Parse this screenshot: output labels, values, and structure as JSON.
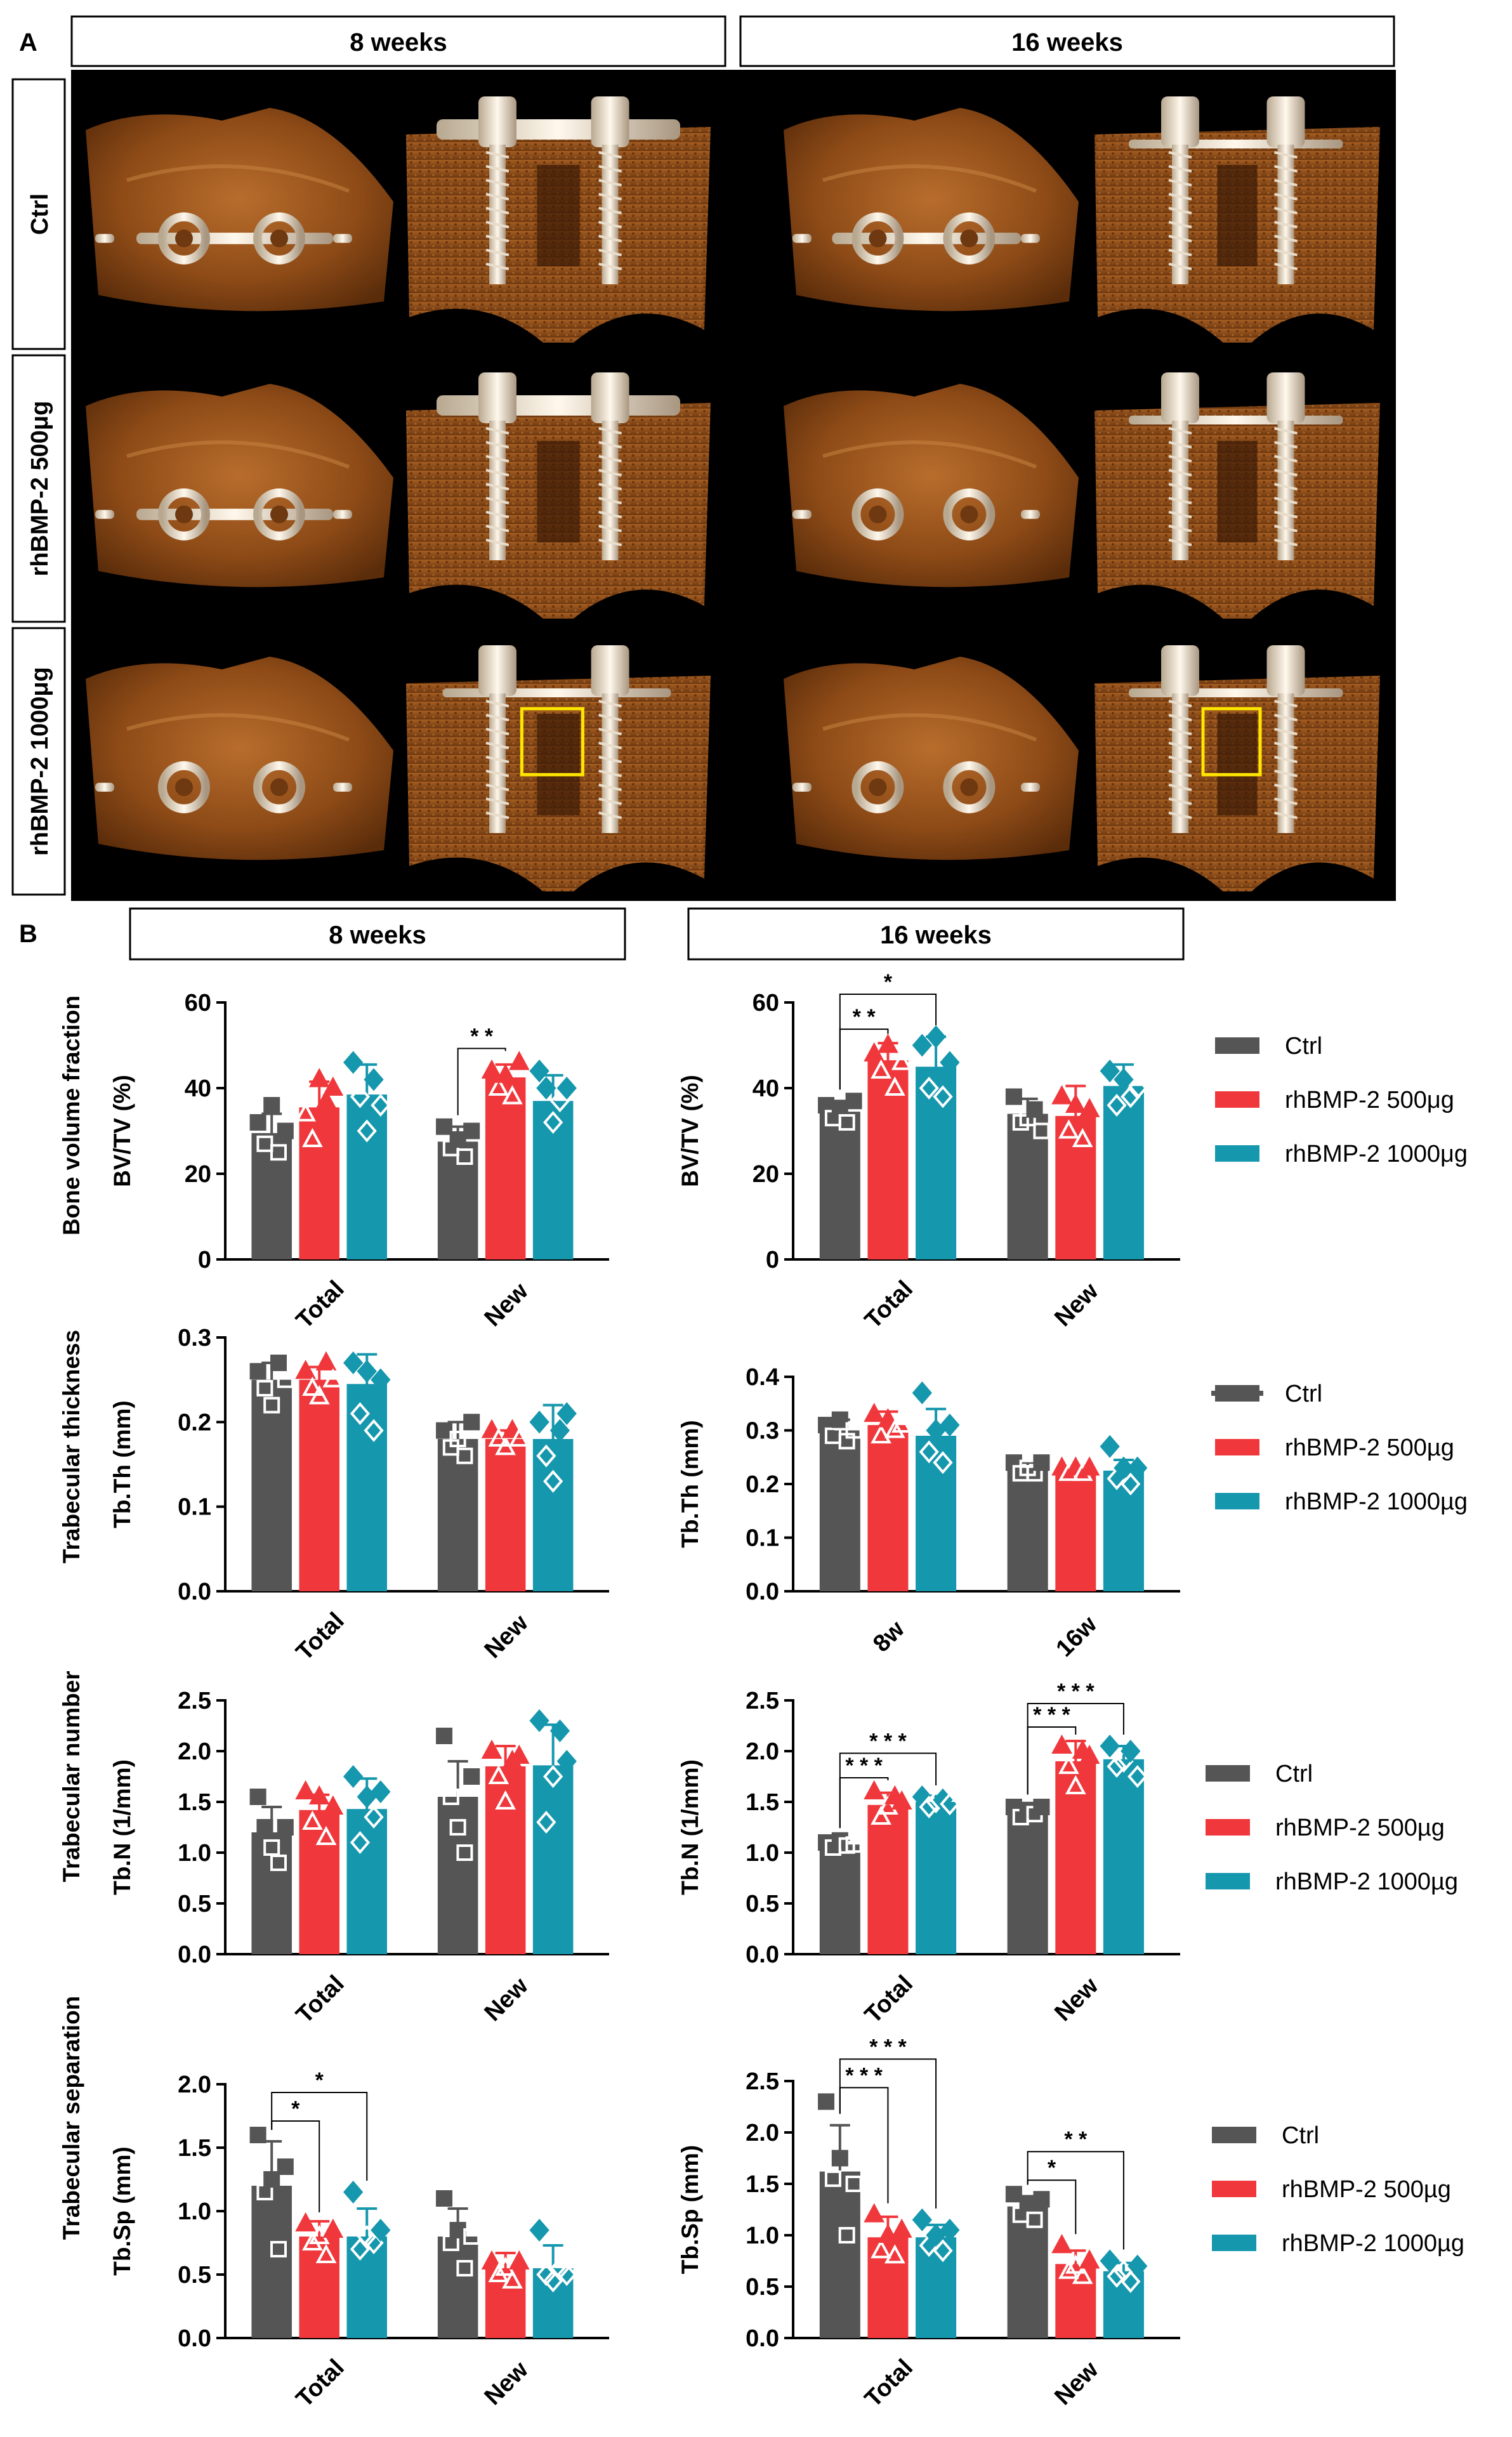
{
  "panel_a": {
    "label": "A",
    "col_headers": [
      "8 weeks",
      "16 weeks"
    ],
    "row_labels": [
      "Ctrl",
      "rhBMP-2 500μg",
      "rhBMP-2 1000μg"
    ]
  },
  "panel_b": {
    "label": "B",
    "col_headers": [
      "8 weeks",
      "16 weeks"
    ],
    "row_titles": [
      "Bone volume fraction",
      "Trabecular thickness",
      "Trabecular number",
      "Trabecular separation"
    ]
  },
  "colors": {
    "ctrl": "#555555",
    "bmp500": "#f0383c",
    "bmp1000": "#1597ad"
  },
  "chart_data": [
    {
      "type": "bar",
      "id": "bv8",
      "ylabel": "BV/TV (%)",
      "ylim": [
        0,
        60
      ],
      "yticks": [
        "0",
        "20",
        "40",
        "60"
      ],
      "categories": [
        "Total",
        "New"
      ],
      "series": [
        {
          "name": "Ctrl",
          "values": [
            29.5,
            27.5
          ],
          "err": [
            4.5,
            3.5
          ],
          "points": [
            [
              32,
              27,
              36,
              25,
              30
            ],
            [
              31,
              26,
              28,
              24,
              30
            ]
          ]
        },
        {
          "name": "rhBMP-2 500μg",
          "values": [
            35.5,
            42.5
          ],
          "err": [
            6,
            3
          ],
          "points": [
            [
              34,
              28,
              42,
              37,
              40
            ],
            [
              44,
              40,
              43,
              38,
              46
            ]
          ]
        },
        {
          "name": "rhBMP-2 1000μg",
          "values": [
            38.5,
            37
          ],
          "err": [
            7,
            6
          ],
          "points": [
            [
              46,
              38,
              30,
              42,
              36
            ],
            [
              44,
              40,
              32,
              37,
              40
            ]
          ]
        }
      ],
      "sig": [
        {
          "text": "* *",
          "from": [
            1,
            0
          ],
          "to": [
            1,
            1
          ]
        }
      ]
    },
    {
      "type": "bar",
      "id": "bv16",
      "ylabel": "BV/TV (%)",
      "ylim": [
        0,
        60
      ],
      "yticks": [
        "0",
        "20",
        "40",
        "60"
      ],
      "categories": [
        "Total",
        "New"
      ],
      "series": [
        {
          "name": "Ctrl",
          "values": [
            34.5,
            34
          ],
          "err": [
            2.5,
            3.5
          ],
          "points": [
            [
              36,
              33,
              35,
              32,
              37
            ],
            [
              38,
              32,
              33,
              35,
              30
            ]
          ]
        },
        {
          "name": "rhBMP-2 500μg",
          "values": [
            46.5,
            33.5
          ],
          "err": [
            4,
            7
          ],
          "points": [
            [
              48,
              44,
              50,
              40,
              46
            ],
            [
              38,
              30,
              36,
              28,
              35
            ]
          ]
        },
        {
          "name": "rhBMP-2 1000μg",
          "values": [
            45,
            40.5
          ],
          "err": [
            7,
            5
          ],
          "points": [
            [
              50,
              40,
              52,
              38,
              46
            ],
            [
              44,
              36,
              42,
              38,
              40
            ]
          ]
        }
      ],
      "sig": [
        {
          "text": "* *",
          "from": [
            0,
            0
          ],
          "to": [
            0,
            1
          ]
        },
        {
          "text": "*",
          "from": [
            0,
            0
          ],
          "to": [
            0,
            2
          ]
        }
      ]
    },
    {
      "type": "bar",
      "id": "th8",
      "ylabel": "Tb.Th (mm)",
      "ylim": [
        0,
        0.3
      ],
      "yticks": [
        "0.0",
        "0.1",
        "0.2",
        "0.3"
      ],
      "categories": [
        "Total",
        "New"
      ],
      "series": [
        {
          "name": "Ctrl",
          "values": [
            0.25,
            0.18
          ],
          "err": [
            0.02,
            0.02
          ],
          "points": [
            [
              0.26,
              0.24,
              0.22,
              0.27,
              0.25
            ],
            [
              0.19,
              0.17,
              0.18,
              0.16,
              0.2
            ]
          ]
        },
        {
          "name": "rhBMP-2 500μg",
          "values": [
            0.25,
            0.18
          ],
          "err": [
            0.015,
            0.01
          ],
          "points": [
            [
              0.26,
              0.24,
              0.23,
              0.27,
              0.25
            ],
            [
              0.19,
              0.18,
              0.17,
              0.19,
              0.18
            ]
          ]
        },
        {
          "name": "rhBMP-2 1000μg",
          "values": [
            0.245,
            0.18
          ],
          "err": [
            0.035,
            0.04
          ],
          "points": [
            [
              0.27,
              0.21,
              0.26,
              0.19,
              0.25
            ],
            [
              0.2,
              0.16,
              0.13,
              0.19,
              0.21
            ]
          ]
        }
      ],
      "sig": []
    },
    {
      "type": "bar",
      "id": "th16",
      "ylabel": "Tb.Th (mm)",
      "ylim": [
        0,
        0.4
      ],
      "yticks": [
        "0.0",
        "0.1",
        "0.2",
        "0.3",
        "0.4"
      ],
      "categories": [
        "8w",
        "16w"
      ],
      "series": [
        {
          "name": "Ctrl",
          "values": [
            0.3,
            0.23
          ],
          "err": [
            0.02,
            0.01
          ],
          "points": [
            [
              0.31,
              0.29,
              0.32,
              0.28,
              0.3
            ],
            [
              0.24,
              0.22,
              0.23,
              0.22,
              0.24
            ]
          ]
        },
        {
          "name": "rhBMP-2 500μg",
          "values": [
            0.31,
            0.225
          ],
          "err": [
            0.025,
            0.008
          ],
          "points": [
            [
              0.33,
              0.29,
              0.32,
              0.3,
              0.31
            ],
            [
              0.23,
              0.22,
              0.23,
              0.22,
              0.23
            ]
          ]
        },
        {
          "name": "rhBMP-2 1000μg",
          "values": [
            0.29,
            0.225
          ],
          "err": [
            0.05,
            0.02
          ],
          "points": [
            [
              0.37,
              0.26,
              0.3,
              0.24,
              0.31
            ],
            [
              0.27,
              0.21,
              0.23,
              0.2,
              0.23
            ]
          ]
        }
      ],
      "sig": []
    },
    {
      "type": "bar",
      "id": "n8",
      "ylabel": "Tb.N (1/mm)",
      "ylim": [
        0,
        2.5
      ],
      "yticks": [
        "0.0",
        "0.5",
        "1.0",
        "1.5",
        "2.0",
        "2.5"
      ],
      "categories": [
        "Total",
        "New"
      ],
      "series": [
        {
          "name": "Ctrl",
          "values": [
            1.2,
            1.55
          ],
          "err": [
            0.25,
            0.35
          ],
          "points": [
            [
              1.55,
              1.25,
              1.05,
              0.9,
              1.25
            ],
            [
              2.15,
              1.55,
              1.25,
              1.0,
              1.75
            ]
          ]
        },
        {
          "name": "rhBMP-2 500μg",
          "values": [
            1.42,
            1.85
          ],
          "err": [
            0.15,
            0.2
          ],
          "points": [
            [
              1.6,
              1.3,
              1.55,
              1.15,
              1.45
            ],
            [
              2.0,
              1.75,
              1.5,
              1.9,
              1.95
            ]
          ]
        },
        {
          "name": "rhBMP-2 1000μg",
          "values": [
            1.43,
            1.86
          ],
          "err": [
            0.3,
            0.4
          ],
          "points": [
            [
              1.75,
              1.1,
              1.55,
              1.35,
              1.6
            ],
            [
              2.3,
              1.3,
              1.75,
              2.2,
              1.9
            ]
          ]
        }
      ],
      "sig": []
    },
    {
      "type": "bar",
      "id": "n16",
      "ylabel": "Tb.N (1/mm)",
      "ylim": [
        0,
        2.5
      ],
      "yticks": [
        "0.0",
        "0.5",
        "1.0",
        "1.5",
        "2.0",
        "2.5"
      ],
      "categories": [
        "Total",
        "New"
      ],
      "series": [
        {
          "name": "Ctrl",
          "values": [
            1.08,
            1.4
          ],
          "err": [
            0.05,
            0.06
          ],
          "points": [
            [
              1.1,
              1.05,
              1.12,
              1.07,
              1.08
            ],
            [
              1.45,
              1.35,
              1.42,
              1.38,
              1.45
            ]
          ]
        },
        {
          "name": "rhBMP-2 500μg",
          "values": [
            1.47,
            1.9
          ],
          "err": [
            0.12,
            0.2
          ],
          "points": [
            [
              1.6,
              1.35,
              1.45,
              1.55,
              1.5
            ],
            [
              2.05,
              1.85,
              1.65,
              2.0,
              1.95
            ]
          ]
        },
        {
          "name": "rhBMP-2 1000μg",
          "values": [
            1.5,
            1.92
          ],
          "err": [
            0.06,
            0.13
          ],
          "points": [
            [
              1.55,
              1.45,
              1.5,
              1.52,
              1.48
            ],
            [
              2.05,
              1.85,
              1.9,
              2.0,
              1.75
            ]
          ]
        }
      ],
      "sig": [
        {
          "text": "* * *",
          "from": [
            0,
            0
          ],
          "to": [
            0,
            1
          ]
        },
        {
          "text": "* * *",
          "from": [
            0,
            0
          ],
          "to": [
            0,
            2
          ]
        },
        {
          "text": "* * *",
          "from": [
            1,
            0
          ],
          "to": [
            1,
            1
          ]
        },
        {
          "text": "* * *",
          "from": [
            1,
            0
          ],
          "to": [
            1,
            2
          ]
        }
      ]
    },
    {
      "type": "bar",
      "id": "sp8",
      "ylabel": "Tb.Sp (mm)",
      "ylim": [
        0,
        2.0
      ],
      "yticks": [
        "0.0",
        "0.5",
        "1.0",
        "1.5",
        "2.0"
      ],
      "categories": [
        "Total",
        "New"
      ],
      "series": [
        {
          "name": "Ctrl",
          "values": [
            1.2,
            0.8
          ],
          "err": [
            0.35,
            0.22
          ],
          "points": [
            [
              1.6,
              1.15,
              1.25,
              0.7,
              1.35
            ],
            [
              1.1,
              0.75,
              0.85,
              0.55,
              0.8
            ]
          ]
        },
        {
          "name": "rhBMP-2 500μg",
          "values": [
            0.8,
            0.55
          ],
          "err": [
            0.12,
            0.12
          ],
          "points": [
            [
              0.9,
              0.75,
              0.8,
              0.65,
              0.85
            ],
            [
              0.6,
              0.5,
              0.55,
              0.45,
              0.6
            ]
          ]
        },
        {
          "name": "rhBMP-2 1000μg",
          "values": [
            0.8,
            0.55
          ],
          "err": [
            0.22,
            0.18
          ],
          "points": [
            [
              1.15,
              0.7,
              0.8,
              0.75,
              0.85
            ],
            [
              0.85,
              0.5,
              0.45,
              0.55,
              0.5
            ]
          ]
        }
      ],
      "sig": [
        {
          "text": "*",
          "from": [
            0,
            0
          ],
          "to": [
            0,
            1
          ]
        },
        {
          "text": "*",
          "from": [
            0,
            0
          ],
          "to": [
            0,
            2
          ]
        }
      ]
    },
    {
      "type": "bar",
      "id": "sp16",
      "ylabel": "Tb.Sp (mm)",
      "ylim": [
        0,
        2.5
      ],
      "yticks": [
        "0.0",
        "0.5",
        "1.0",
        "1.5",
        "2.0",
        "2.5"
      ],
      "categories": [
        "Total",
        "New"
      ],
      "series": [
        {
          "name": "Ctrl",
          "values": [
            1.62,
            1.28
          ],
          "err": [
            0.45,
            0.1
          ],
          "points": [
            [
              2.3,
              1.55,
              1.75,
              1.0,
              1.5
            ],
            [
              1.4,
              1.2,
              1.3,
              1.15,
              1.35
            ]
          ]
        },
        {
          "name": "rhBMP-2 500μg",
          "values": [
            0.98,
            0.72
          ],
          "err": [
            0.2,
            0.13
          ],
          "points": [
            [
              1.2,
              0.85,
              1.0,
              0.8,
              1.05
            ],
            [
              0.9,
              0.65,
              0.7,
              0.6,
              0.75
            ]
          ]
        },
        {
          "name": "rhBMP-2 1000μg",
          "values": [
            0.98,
            0.65
          ],
          "err": [
            0.12,
            0.08
          ],
          "points": [
            [
              1.15,
              0.9,
              1.0,
              0.85,
              1.05
            ],
            [
              0.75,
              0.6,
              0.65,
              0.55,
              0.7
            ]
          ]
        }
      ],
      "sig": [
        {
          "text": "* * *",
          "from": [
            0,
            0
          ],
          "to": [
            0,
            1
          ]
        },
        {
          "text": "* * *",
          "from": [
            0,
            0
          ],
          "to": [
            0,
            2
          ]
        },
        {
          "text": "*",
          "from": [
            1,
            0
          ],
          "to": [
            1,
            1
          ]
        },
        {
          "text": "* *",
          "from": [
            1,
            0
          ],
          "to": [
            1,
            2
          ]
        }
      ]
    }
  ],
  "legend": {
    "entries": [
      "Ctrl",
      "rhBMP-2 500μg",
      "rhBMP-2 1000μg"
    ],
    "entries_alt": [
      "Ctrl",
      "rhBMP-2 500µg",
      "rhBMP-2 1000µg"
    ]
  }
}
